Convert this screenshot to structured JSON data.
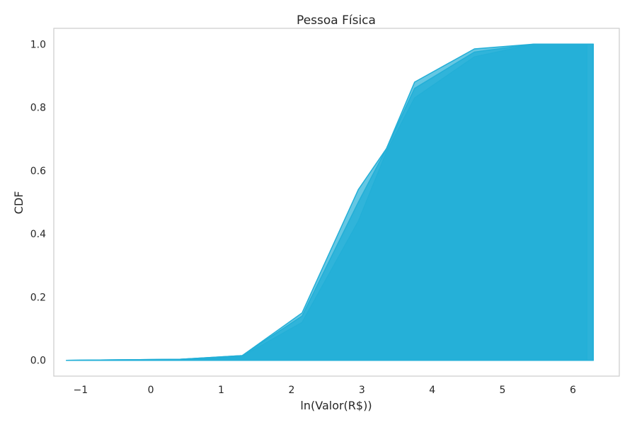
{
  "chart_data": {
    "type": "area",
    "title": "Pessoa Física",
    "xlabel": "ln(Valor(R$))",
    "ylabel": "CDF",
    "xlim": [
      -1.38,
      6.66
    ],
    "ylim": [
      -0.05,
      1.05
    ],
    "xticks": [
      -1,
      0,
      1,
      2,
      3,
      4,
      5,
      6
    ],
    "xtick_labels": [
      "−1",
      "0",
      "1",
      "2",
      "3",
      "4",
      "5",
      "6"
    ],
    "yticks": [
      0.0,
      0.2,
      0.4,
      0.6,
      0.8,
      1.0
    ],
    "ytick_labels": [
      "0.0",
      "0.2",
      "0.4",
      "0.6",
      "0.8",
      "1.0"
    ],
    "grid": false,
    "fill_color": "#23afd7",
    "series": [
      {
        "x": [
          -1.2,
          0.4,
          1.3,
          2.15,
          2.95,
          3.35,
          3.75,
          4.6,
          5.45,
          6.2,
          6.2
        ],
        "y": [
          0.0,
          0.003,
          0.015,
          0.15,
          0.54,
          0.67,
          0.88,
          0.985,
          1.0,
          1.0,
          0.0
        ]
      },
      {
        "x": [
          -1.2,
          0.4,
          1.3,
          2.15,
          2.95,
          3.35,
          3.75,
          4.6,
          5.45,
          6.29,
          6.29
        ],
        "y": [
          0.0,
          0.003,
          0.015,
          0.14,
          0.5,
          0.67,
          0.86,
          0.975,
          1.0,
          1.0,
          0.0
        ]
      },
      {
        "x": [
          -1.2,
          0.4,
          1.3,
          2.15,
          2.95,
          3.35,
          3.75,
          4.6,
          5.45,
          6.29,
          6.29
        ],
        "y": [
          0.0,
          0.003,
          0.013,
          0.12,
          0.44,
          0.66,
          0.83,
          0.96,
          1.0,
          1.0,
          0.0
        ]
      }
    ]
  }
}
